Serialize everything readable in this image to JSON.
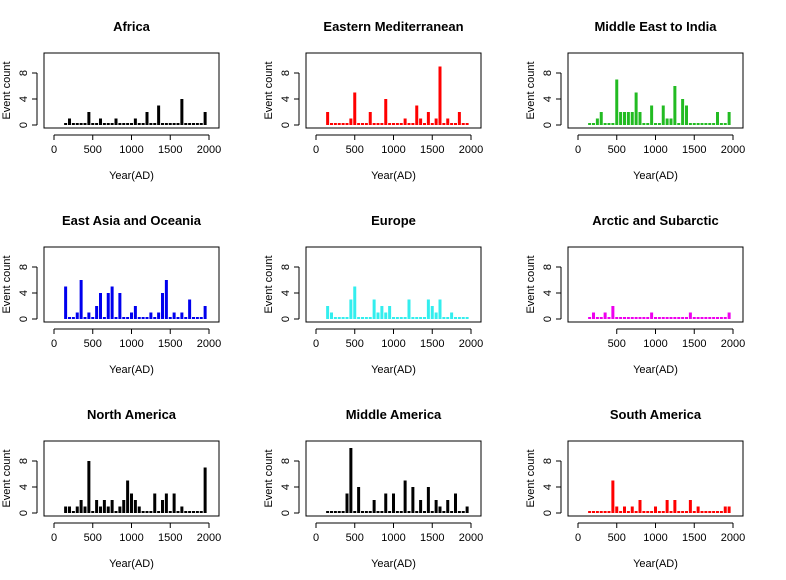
{
  "figure": {
    "axis_color": "#000000",
    "background": "#ffffff"
  },
  "chart_data": [
    {
      "type": "bar",
      "title": "Africa",
      "xlabel": "Year(AD)",
      "ylabel": "Event count",
      "color": "#000000",
      "xlim": [
        0,
        2000
      ],
      "ylim": [
        0,
        10
      ],
      "x_ticks": [
        0,
        500,
        1000,
        1500,
        2000
      ],
      "y_ticks": [
        0,
        4,
        8
      ],
      "x": [
        150,
        200,
        250,
        300,
        350,
        400,
        450,
        500,
        550,
        600,
        650,
        700,
        750,
        800,
        850,
        900,
        950,
        1000,
        1050,
        1100,
        1150,
        1200,
        1250,
        1300,
        1350,
        1400,
        1450,
        1500,
        1550,
        1600,
        1650,
        1700,
        1750,
        1800,
        1850,
        1900,
        1950
      ],
      "values": [
        0,
        1,
        0,
        0,
        0,
        0,
        2,
        0,
        0,
        1,
        0,
        0,
        0,
        1,
        0,
        0,
        0,
        0,
        1,
        0,
        0,
        2,
        0,
        0,
        3,
        0,
        0,
        0,
        0,
        0,
        4,
        0,
        0,
        0,
        0,
        0,
        2
      ]
    },
    {
      "type": "bar",
      "title": "Eastern Mediterranean",
      "xlabel": "Year(AD)",
      "ylabel": "Event count",
      "color": "#ff0000",
      "xlim": [
        0,
        2000
      ],
      "ylim": [
        0,
        10
      ],
      "x_ticks": [
        0,
        500,
        1000,
        1500,
        2000
      ],
      "y_ticks": [
        0,
        4,
        8
      ],
      "x": [
        150,
        200,
        250,
        300,
        350,
        400,
        450,
        500,
        550,
        600,
        650,
        700,
        750,
        800,
        850,
        900,
        950,
        1000,
        1050,
        1100,
        1150,
        1200,
        1250,
        1300,
        1350,
        1400,
        1450,
        1500,
        1550,
        1600,
        1650,
        1700,
        1750,
        1800,
        1850,
        1900,
        1950
      ],
      "values": [
        2,
        0,
        0,
        0,
        0,
        0,
        1,
        5,
        0,
        0,
        0,
        2,
        0,
        0,
        0,
        4,
        0,
        0,
        0,
        0,
        1,
        0,
        0,
        3,
        1,
        0,
        2,
        0,
        1,
        9,
        0,
        1,
        0,
        0,
        2,
        0,
        0
      ]
    },
    {
      "type": "bar",
      "title": "Middle East to India",
      "xlabel": "Year(AD)",
      "ylabel": "Event count",
      "color": "#22bb22",
      "xlim": [
        0,
        2000
      ],
      "ylim": [
        0,
        10
      ],
      "x_ticks": [
        0,
        500,
        1000,
        1500,
        2000
      ],
      "y_ticks": [
        0,
        4,
        8
      ],
      "x": [
        150,
        200,
        250,
        300,
        350,
        400,
        450,
        500,
        550,
        600,
        650,
        700,
        750,
        800,
        850,
        900,
        950,
        1000,
        1050,
        1100,
        1150,
        1200,
        1250,
        1300,
        1350,
        1400,
        1450,
        1500,
        1550,
        1600,
        1650,
        1700,
        1750,
        1800,
        1850,
        1900,
        1950
      ],
      "values": [
        0,
        0,
        1,
        2,
        0,
        0,
        0,
        7,
        2,
        2,
        2,
        2,
        5,
        2,
        0,
        0,
        3,
        0,
        0,
        3,
        1,
        1,
        6,
        0,
        4,
        3,
        0,
        0,
        0,
        0,
        0,
        0,
        0,
        2,
        0,
        0,
        2
      ]
    },
    {
      "type": "bar",
      "title": "East Asia and Oceania",
      "xlabel": "Year(AD)",
      "ylabel": "Event count",
      "color": "#0000ee",
      "xlim": [
        0,
        2000
      ],
      "ylim": [
        0,
        10
      ],
      "x_ticks": [
        0,
        500,
        1000,
        1500,
        2000
      ],
      "y_ticks": [
        0,
        4,
        8
      ],
      "x": [
        150,
        200,
        250,
        300,
        350,
        400,
        450,
        500,
        550,
        600,
        650,
        700,
        750,
        800,
        850,
        900,
        950,
        1000,
        1050,
        1100,
        1150,
        1200,
        1250,
        1300,
        1350,
        1400,
        1450,
        1500,
        1550,
        1600,
        1650,
        1700,
        1750,
        1800,
        1850,
        1900,
        1950
      ],
      "values": [
        5,
        0,
        0,
        1,
        6,
        0,
        1,
        0,
        2,
        4,
        0,
        4,
        5,
        0,
        4,
        0,
        0,
        1,
        2,
        0,
        0,
        0,
        1,
        0,
        1,
        4,
        6,
        0,
        1,
        0,
        1,
        0,
        3,
        0,
        0,
        0,
        2
      ]
    },
    {
      "type": "bar",
      "title": "Europe",
      "xlabel": "Year(AD)",
      "ylabel": "Event count",
      "color": "#33eeee",
      "xlim": [
        0,
        2000
      ],
      "ylim": [
        0,
        10
      ],
      "x_ticks": [
        0,
        500,
        1000,
        1500,
        2000
      ],
      "y_ticks": [
        0,
        4,
        8
      ],
      "x": [
        150,
        200,
        250,
        300,
        350,
        400,
        450,
        500,
        550,
        600,
        650,
        700,
        750,
        800,
        850,
        900,
        950,
        1000,
        1050,
        1100,
        1150,
        1200,
        1250,
        1300,
        1350,
        1400,
        1450,
        1500,
        1550,
        1600,
        1650,
        1700,
        1750,
        1800,
        1850,
        1900,
        1950
      ],
      "values": [
        2,
        1,
        0,
        0,
        0,
        0,
        3,
        5,
        0,
        0,
        0,
        0,
        3,
        1,
        2,
        1,
        2,
        0,
        0,
        0,
        0,
        3,
        0,
        0,
        0,
        0,
        3,
        2,
        1,
        3,
        0,
        0,
        1,
        0,
        0,
        0,
        0
      ]
    },
    {
      "type": "bar",
      "title": "Arctic and Subarctic",
      "xlabel": "Year(AD)",
      "ylabel": "Event count",
      "color": "#ee00ee",
      "xlim": [
        0,
        2000
      ],
      "ylim": [
        0,
        10
      ],
      "x_ticks": [
        500,
        1000,
        1500,
        2000
      ],
      "y_ticks": [
        0,
        4,
        8
      ],
      "x": [
        150,
        200,
        250,
        300,
        350,
        400,
        450,
        500,
        550,
        600,
        650,
        700,
        750,
        800,
        850,
        900,
        950,
        1000,
        1050,
        1100,
        1150,
        1200,
        1250,
        1300,
        1350,
        1400,
        1450,
        1500,
        1550,
        1600,
        1650,
        1700,
        1750,
        1800,
        1850,
        1900,
        1950
      ],
      "values": [
        0,
        1,
        0,
        0,
        1,
        0,
        2,
        0,
        0,
        0,
        0,
        0,
        0,
        0,
        0,
        0,
        1,
        0,
        0,
        0,
        0,
        0,
        0,
        0,
        0,
        0,
        1,
        0,
        0,
        0,
        0,
        0,
        0,
        0,
        0,
        0,
        1
      ]
    },
    {
      "type": "bar",
      "title": "North America",
      "xlabel": "Year(AD)",
      "ylabel": "Event count",
      "color": "#000000",
      "xlim": [
        0,
        2000
      ],
      "ylim": [
        0,
        10
      ],
      "x_ticks": [
        0,
        500,
        1000,
        1500,
        2000
      ],
      "y_ticks": [
        0,
        4,
        8
      ],
      "x": [
        150,
        200,
        250,
        300,
        350,
        400,
        450,
        500,
        550,
        600,
        650,
        700,
        750,
        800,
        850,
        900,
        950,
        1000,
        1050,
        1100,
        1150,
        1200,
        1250,
        1300,
        1350,
        1400,
        1450,
        1500,
        1550,
        1600,
        1650,
        1700,
        1750,
        1800,
        1850,
        1900,
        1950
      ],
      "values": [
        1,
        1,
        0,
        1,
        2,
        1,
        8,
        0,
        2,
        1,
        2,
        1,
        2,
        0,
        1,
        2,
        5,
        3,
        2,
        1,
        0,
        0,
        0,
        3,
        0,
        2,
        3,
        0,
        3,
        0,
        1,
        0,
        0,
        0,
        0,
        0,
        7
      ]
    },
    {
      "type": "bar",
      "title": "Middle America",
      "xlabel": "Year(AD)",
      "ylabel": "Event count",
      "color": "#000000",
      "xlim": [
        0,
        2000
      ],
      "ylim": [
        0,
        10
      ],
      "x_ticks": [
        0,
        500,
        1000,
        1500,
        2000
      ],
      "y_ticks": [
        0,
        4,
        8
      ],
      "x": [
        150,
        200,
        250,
        300,
        350,
        400,
        450,
        500,
        550,
        600,
        650,
        700,
        750,
        800,
        850,
        900,
        950,
        1000,
        1050,
        1100,
        1150,
        1200,
        1250,
        1300,
        1350,
        1400,
        1450,
        1500,
        1550,
        1600,
        1650,
        1700,
        1750,
        1800,
        1850,
        1900,
        1950
      ],
      "values": [
        0,
        0,
        0,
        0,
        0,
        3,
        10,
        0,
        4,
        0,
        0,
        0,
        2,
        0,
        0,
        3,
        0,
        3,
        0,
        0,
        5,
        0,
        4,
        0,
        2,
        0,
        4,
        0,
        2,
        1,
        0,
        2,
        0,
        3,
        0,
        0,
        1
      ]
    },
    {
      "type": "bar",
      "title": "South America",
      "xlabel": "Year(AD)",
      "ylabel": "Event count",
      "color": "#ff0000",
      "xlim": [
        0,
        2000
      ],
      "ylim": [
        0,
        10
      ],
      "x_ticks": [
        0,
        500,
        1000,
        1500,
        2000
      ],
      "y_ticks": [
        0,
        4,
        8
      ],
      "x": [
        150,
        200,
        250,
        300,
        350,
        400,
        450,
        500,
        550,
        600,
        650,
        700,
        750,
        800,
        850,
        900,
        950,
        1000,
        1050,
        1100,
        1150,
        1200,
        1250,
        1300,
        1350,
        1400,
        1450,
        1500,
        1550,
        1600,
        1650,
        1700,
        1750,
        1800,
        1850,
        1900,
        1950
      ],
      "values": [
        0,
        0,
        0,
        0,
        0,
        0,
        5,
        1,
        0,
        1,
        0,
        1,
        0,
        2,
        0,
        0,
        0,
        1,
        0,
        0,
        2,
        0,
        2,
        0,
        0,
        0,
        2,
        0,
        1,
        0,
        0,
        0,
        0,
        0,
        0,
        1,
        1
      ]
    }
  ]
}
